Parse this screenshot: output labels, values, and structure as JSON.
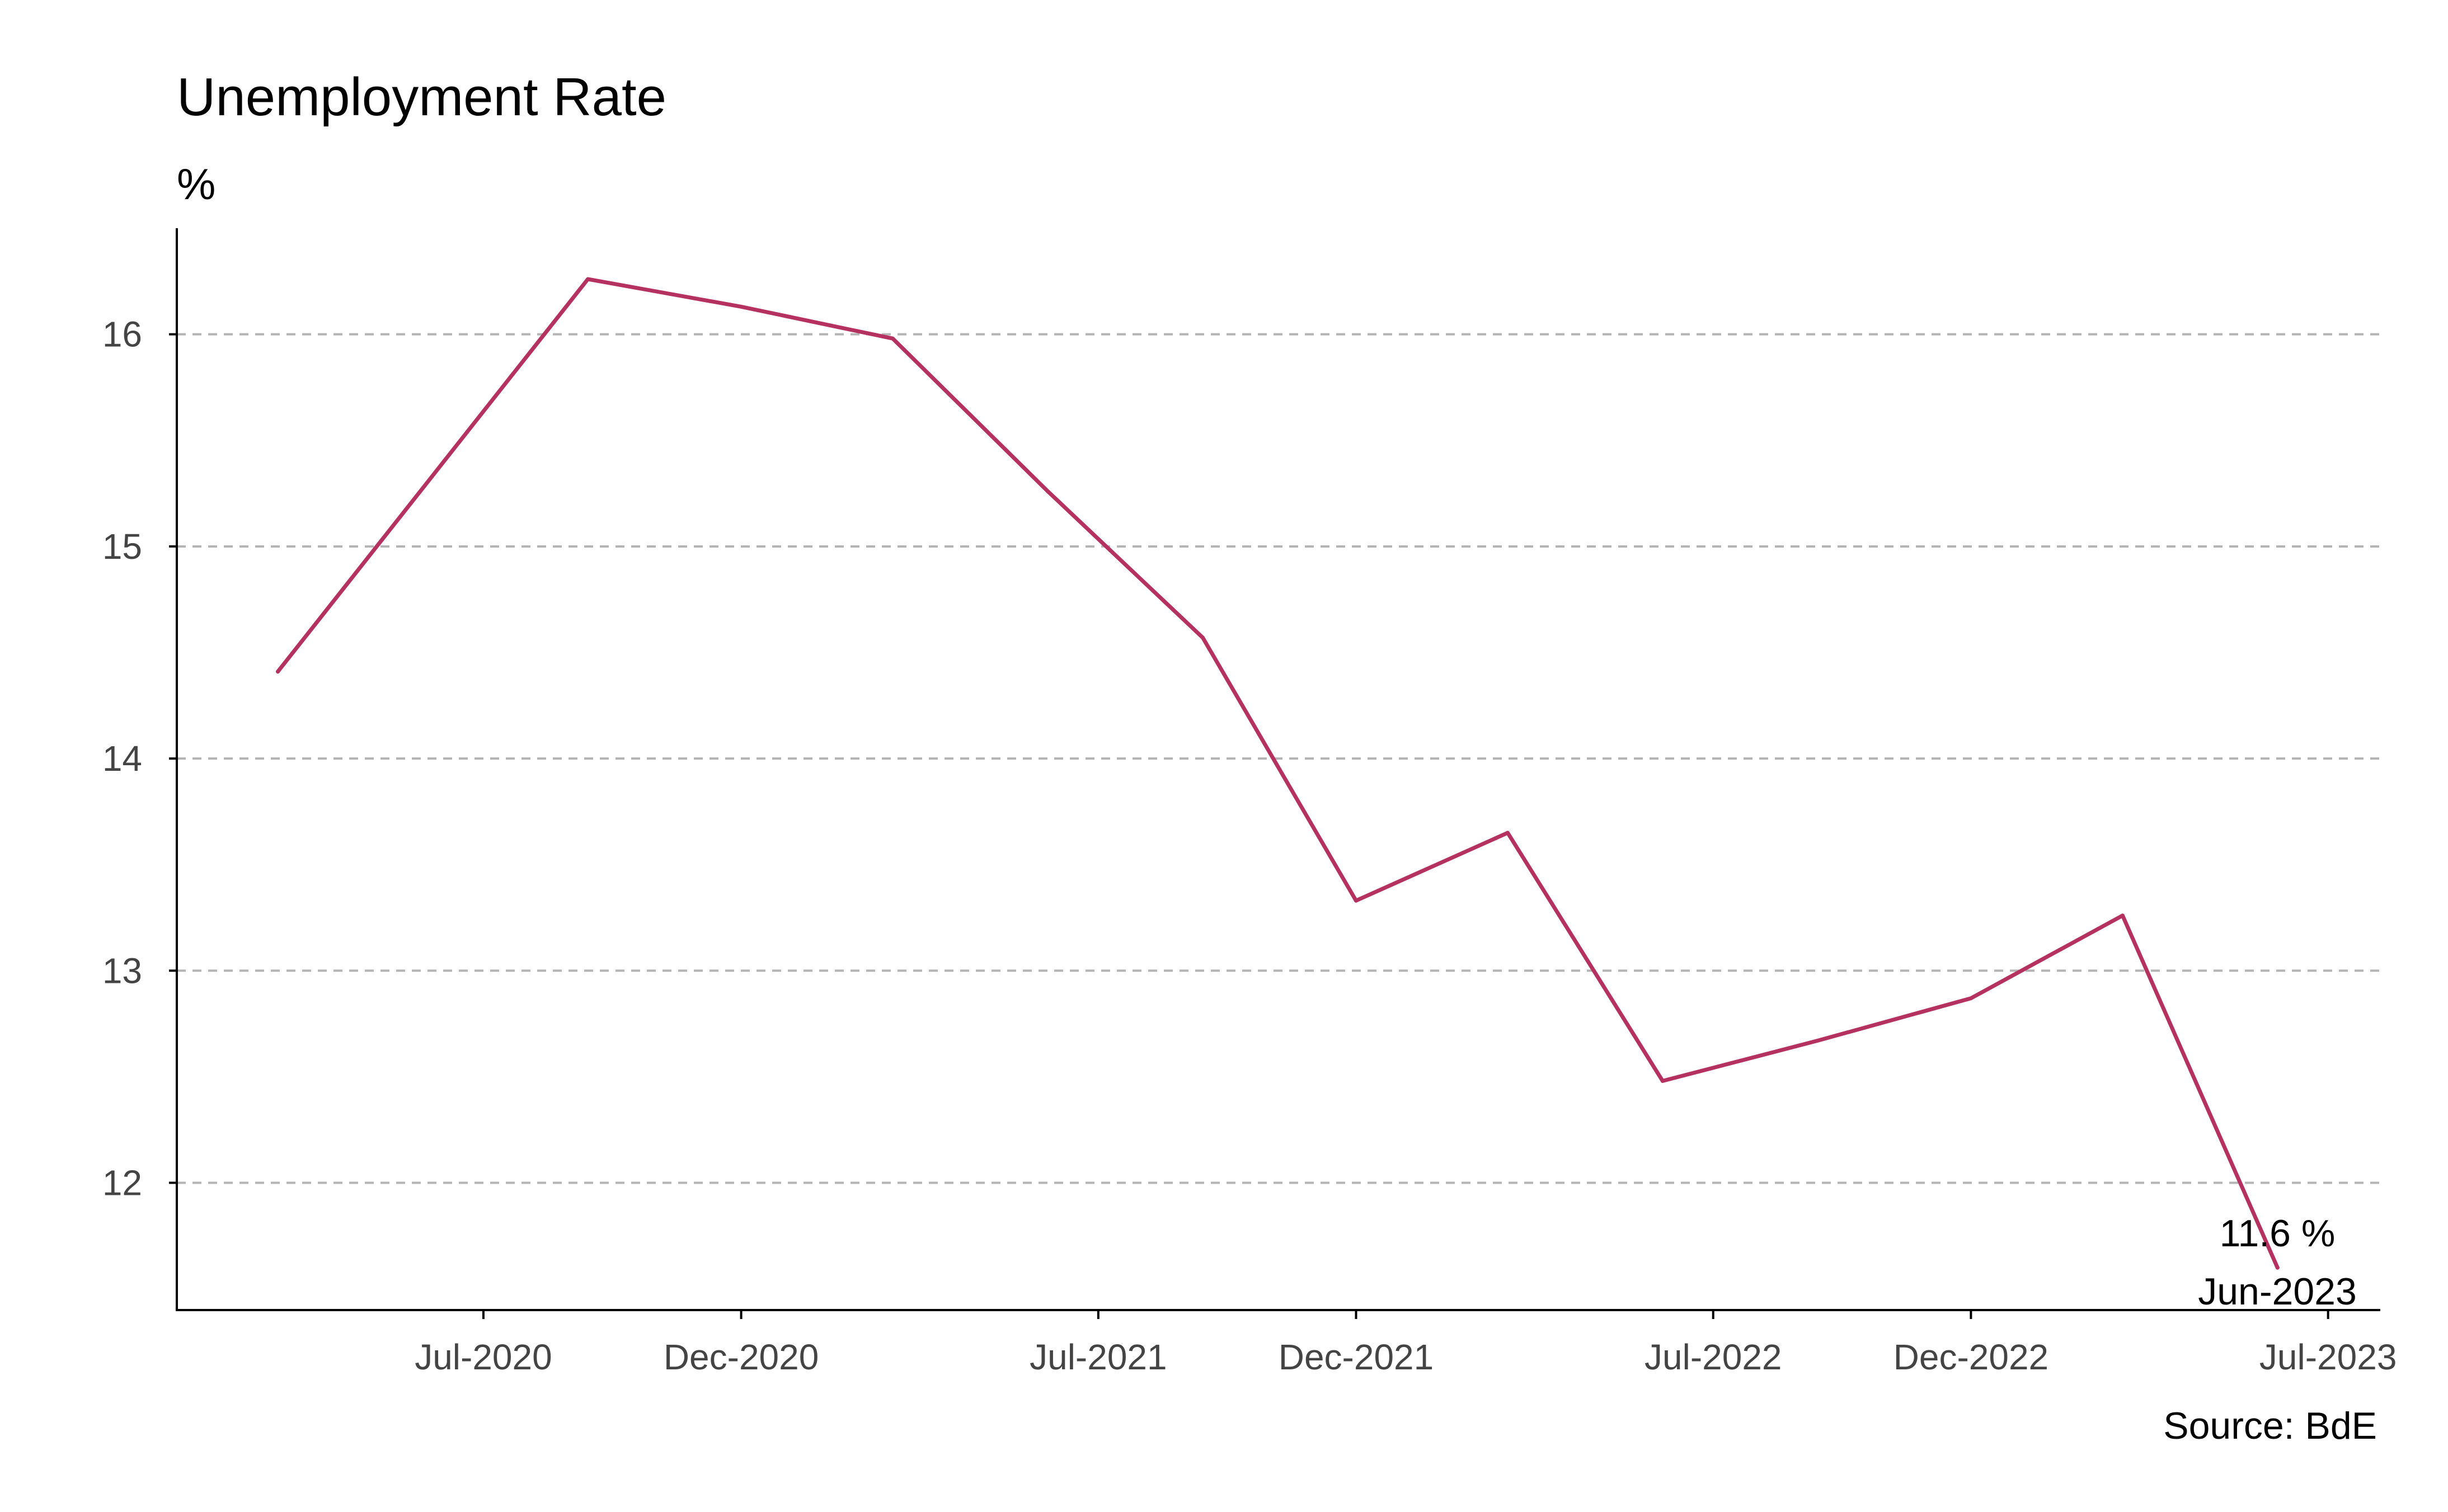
{
  "chart_data": {
    "type": "line",
    "title": "Unemployment Rate",
    "ylabel": "%",
    "xlabel": "",
    "source": "Source: BdE",
    "ylim": [
      11.4,
      16.5
    ],
    "xlim": [
      "2020-01-01",
      "2023-08-01"
    ],
    "grid": "horizontal dashed",
    "yticks": [
      12,
      13,
      14,
      15,
      16
    ],
    "xticks": [
      {
        "label": "Jul-2020",
        "date": "2020-07-01"
      },
      {
        "label": "Dec-2020",
        "date": "2020-12-01"
      },
      {
        "label": "Jul-2021",
        "date": "2021-07-01"
      },
      {
        "label": "Dec-2021",
        "date": "2021-12-01"
      },
      {
        "label": "Jul-2022",
        "date": "2022-07-01"
      },
      {
        "label": "Dec-2022",
        "date": "2022-12-01"
      },
      {
        "label": "Jul-2023",
        "date": "2023-07-01"
      }
    ],
    "series": [
      {
        "color": "#b5315f",
        "points": [
          {
            "date": "2020-03-01",
            "value": 14.41
          },
          {
            "date": "2020-09-01",
            "value": 16.26
          },
          {
            "date": "2020-12-01",
            "value": 16.13
          },
          {
            "date": "2021-03-01",
            "value": 15.98
          },
          {
            "date": "2021-06-01",
            "value": 15.26
          },
          {
            "date": "2021-09-01",
            "value": 14.57
          },
          {
            "date": "2021-12-01",
            "value": 13.33
          },
          {
            "date": "2022-03-01",
            "value": 13.65
          },
          {
            "date": "2022-06-01",
            "value": 12.48
          },
          {
            "date": "2022-09-01",
            "value": 12.67
          },
          {
            "date": "2022-12-01",
            "value": 12.87
          },
          {
            "date": "2023-03-01",
            "value": 13.26
          },
          {
            "date": "2023-06-01",
            "value": 11.6
          }
        ]
      }
    ],
    "annotation": {
      "value_label": "11.6 %",
      "date_label": "Jun-2023"
    }
  }
}
